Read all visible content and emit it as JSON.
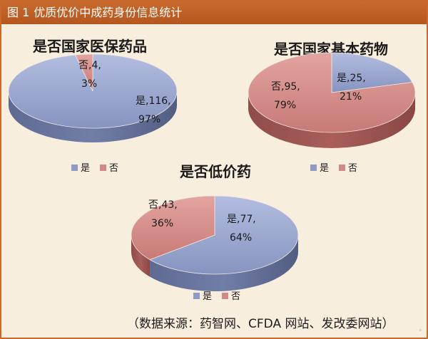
{
  "header": {
    "figure_no": "图 1",
    "title": "优质优价中成药身份信息统计"
  },
  "source_note": "（数据来源：药智网、CFDA 网站、发改委网站）",
  "chart_data": [
    {
      "type": "pie",
      "title": "是否国家医保药品",
      "slices": [
        {
          "label": "是",
          "value": 116,
          "percent": "97%",
          "color": "#8e9bc6"
        },
        {
          "label": "否",
          "value": 4,
          "percent": "3%",
          "color": "#cf8a87"
        }
      ],
      "legend": [
        "是",
        "否"
      ],
      "legend_position": "bottom"
    },
    {
      "type": "pie",
      "title": "是否国家基本药物",
      "slices": [
        {
          "label": "是",
          "value": 25,
          "percent": "21%",
          "color": "#8e9bc6"
        },
        {
          "label": "否",
          "value": 95,
          "percent": "79%",
          "color": "#cf8a87"
        }
      ],
      "legend": [
        "是",
        "否"
      ],
      "legend_position": "bottom"
    },
    {
      "type": "pie",
      "title": "是否低价药",
      "slices": [
        {
          "label": "是",
          "value": 77,
          "percent": "64%",
          "color": "#8e9bc6"
        },
        {
          "label": "否",
          "value": 43,
          "percent": "36%",
          "color": "#cf8a87"
        }
      ],
      "legend": [
        "是",
        "否"
      ],
      "legend_position": "bottom"
    }
  ]
}
